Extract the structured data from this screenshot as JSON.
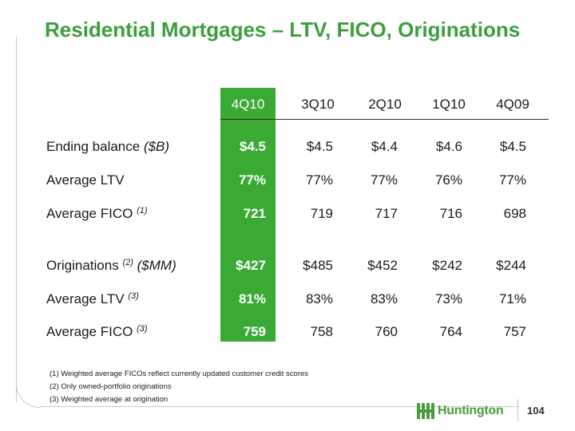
{
  "title": "Residential Mortgages – LTV, FICO, Originations",
  "table": {
    "headers": [
      "4Q10",
      "3Q10",
      "2Q10",
      "1Q10",
      "4Q09"
    ],
    "rows": [
      {
        "label": "Ending balance ",
        "label_italic": "($B)",
        "sup": "",
        "values": [
          "$4.5",
          "$4.5",
          "$4.4",
          "$4.6",
          "$4.5"
        ]
      },
      {
        "label": "Average LTV",
        "label_italic": "",
        "sup": "",
        "values": [
          "77%",
          "77%",
          "77%",
          "76%",
          "77%"
        ]
      },
      {
        "label": "Average FICO ",
        "label_italic": "",
        "sup": "(1)",
        "values": [
          "721",
          "719",
          "717",
          "716",
          "698"
        ]
      },
      {
        "label": "Originations ",
        "label_italic": "($MM)",
        "sup": "(2)",
        "values": [
          "$427",
          "$485",
          "$452",
          "$242",
          "$244"
        ]
      },
      {
        "label": "Average LTV ",
        "label_italic": "",
        "sup": "(3)",
        "values": [
          "81%",
          "83%",
          "83%",
          "73%",
          "71%"
        ]
      },
      {
        "label": "Average FICO ",
        "label_italic": "",
        "sup": "(3)",
        "values": [
          "759",
          "758",
          "760",
          "764",
          "757"
        ]
      }
    ]
  },
  "footnotes": [
    "(1)  Weighted average FICOs reflect currently updated customer credit scores",
    "(2)  Only owned-portfolio originations",
    "(3)  Weighted average at origination"
  ],
  "logo_text": "Huntington",
  "page_number": "104",
  "colors": {
    "title": "#3c9f3c",
    "highlight": "#3aaa35",
    "logo": "#4a9d3c"
  }
}
